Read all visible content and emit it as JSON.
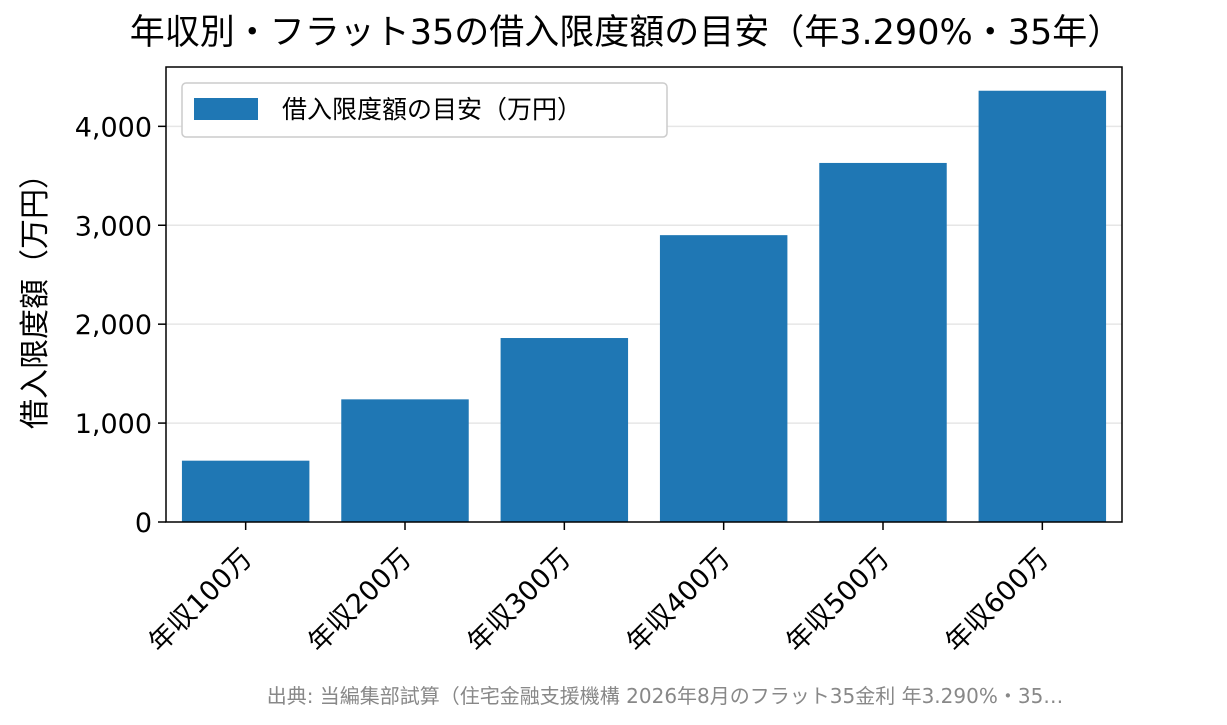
{
  "chart_data": {
    "type": "bar",
    "title": "年収別・フラット35の借入限度額の目安（年3.290%・35年）",
    "ylabel": "借入限度額（万円）",
    "xlabel": "",
    "categories": [
      "年収100万",
      "年収200万",
      "年収300万",
      "年収400万",
      "年収500万",
      "年収600万"
    ],
    "series": [
      {
        "name": "借入限度額の目安（万円）",
        "values": [
          620,
          1240,
          1860,
          2900,
          3630,
          4360
        ]
      }
    ],
    "ylim": [
      0,
      4600
    ],
    "yticks": [
      0,
      1000,
      2000,
      3000,
      4000
    ],
    "ytick_labels": [
      "0",
      "1,000",
      "2,000",
      "3,000",
      "4,000"
    ],
    "grid": "horizontal",
    "legend_position": "top-left",
    "bar_color": "#1f77b4",
    "source_note": "出典: 当編集部試算（住宅金融支援機構 2026年8月のフラット35金利 年3.290%・35…"
  }
}
